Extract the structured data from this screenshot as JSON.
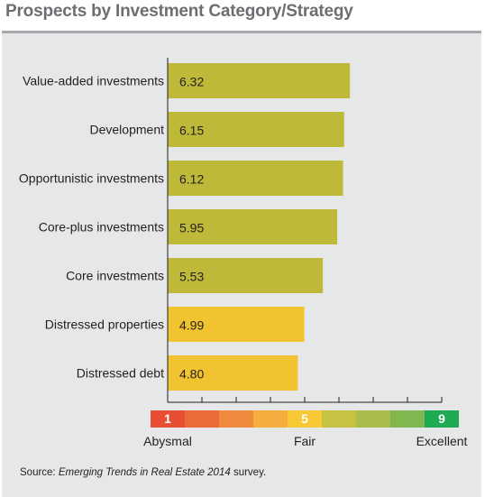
{
  "title": "Prospects by Investment Category/Strategy",
  "source": {
    "prefix": "Source: ",
    "publication": "Emerging Trends in Real Estate 2014",
    "suffix": " survey."
  },
  "chart_data": {
    "type": "bar",
    "orientation": "horizontal",
    "title": "Prospects by Investment Category/Strategy",
    "categories": [
      "Value-added investments",
      "Development",
      "Opportunistic investments",
      "Core-plus investments",
      "Core investments",
      "Distressed properties",
      "Distressed debt"
    ],
    "values": [
      6.32,
      6.15,
      6.12,
      5.95,
      5.53,
      4.99,
      4.8
    ],
    "value_labels": [
      "6.32",
      "6.15",
      "6.12",
      "5.95",
      "5.53",
      "4.99",
      "4.80"
    ],
    "bar_colors": [
      "#bfb93a",
      "#bfb93a",
      "#bfb93a",
      "#bfb93a",
      "#bfb93a",
      "#f2c330",
      "#f2c330"
    ],
    "xlim": [
      1,
      9
    ],
    "grid": false,
    "scale": {
      "segments": [
        {
          "value": 1,
          "label": "1",
          "color": "#e84e32"
        },
        {
          "value": 2,
          "label": "",
          "color": "#eb6a3a"
        },
        {
          "value": 3,
          "label": "",
          "color": "#ef8a3c"
        },
        {
          "value": 4,
          "label": "",
          "color": "#f5ae3d"
        },
        {
          "value": 5,
          "label": "5",
          "color": "#f7c934"
        },
        {
          "value": 6,
          "label": "",
          "color": "#c6c244"
        },
        {
          "value": 7,
          "label": "",
          "color": "#a9bd4a"
        },
        {
          "value": 8,
          "label": "",
          "color": "#80b74e"
        },
        {
          "value": 9,
          "label": "9",
          "color": "#1ea953"
        }
      ],
      "labels": [
        {
          "value": 1,
          "text": "Abysmal"
        },
        {
          "value": 5,
          "text": "Fair"
        },
        {
          "value": 9,
          "text": "Excellent"
        }
      ]
    }
  }
}
